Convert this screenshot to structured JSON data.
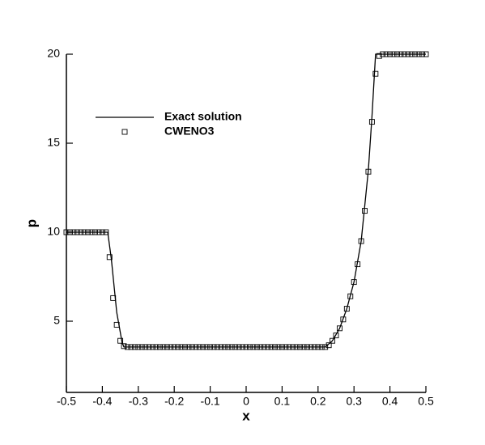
{
  "chart_data": {
    "type": "line",
    "x_label": "x",
    "y_label": "p",
    "xlim": [
      -0.5,
      0.5
    ],
    "xticks": [
      -0.5,
      -0.4,
      -0.3,
      -0.2,
      -0.1,
      0,
      0.1,
      0.2,
      0.3,
      0.4,
      0.5
    ],
    "ylim": [
      1,
      20
    ],
    "yticks": [
      5,
      10,
      15,
      20
    ],
    "legend": "upper left",
    "series": [
      {
        "name": "Exact solution",
        "type": "line",
        "color": "#000000",
        "x": [
          -0.5,
          -0.385,
          -0.375,
          -0.36,
          -0.345,
          -0.34,
          0.22,
          0.24,
          0.26,
          0.28,
          0.3,
          0.32,
          0.34,
          0.35,
          0.36,
          0.5
        ],
        "values": [
          10,
          10,
          8.5,
          5.5,
          3.8,
          3.55,
          3.55,
          3.9,
          4.6,
          5.7,
          7.2,
          9.5,
          13.5,
          16.5,
          20,
          20
        ]
      },
      {
        "name": "CWENO3",
        "type": "scatter",
        "marker": "square",
        "color": "#000000",
        "x": [
          -0.5,
          -0.49,
          -0.48,
          -0.47,
          -0.46,
          -0.45,
          -0.44,
          -0.43,
          -0.42,
          -0.41,
          -0.4,
          -0.39,
          -0.38,
          -0.37,
          -0.36,
          -0.35,
          -0.34,
          -0.33,
          -0.32,
          -0.31,
          -0.3,
          -0.29,
          -0.28,
          -0.27,
          -0.26,
          -0.25,
          -0.24,
          -0.23,
          -0.22,
          -0.21,
          -0.2,
          -0.19,
          -0.18,
          -0.17,
          -0.16,
          -0.15,
          -0.14,
          -0.13,
          -0.12,
          -0.11,
          -0.1,
          -0.09,
          -0.08,
          -0.07,
          -0.06,
          -0.05,
          -0.04,
          -0.03,
          -0.02,
          -0.01,
          0,
          0.01,
          0.02,
          0.03,
          0.04,
          0.05,
          0.06,
          0.07,
          0.08,
          0.09,
          0.1,
          0.11,
          0.12,
          0.13,
          0.14,
          0.15,
          0.16,
          0.17,
          0.18,
          0.19,
          0.2,
          0.21,
          0.22,
          0.23,
          0.24,
          0.25,
          0.26,
          0.27,
          0.28,
          0.29,
          0.3,
          0.31,
          0.32,
          0.33,
          0.34,
          0.35,
          0.36,
          0.37,
          0.38,
          0.39,
          0.4,
          0.41,
          0.42,
          0.43,
          0.44,
          0.45,
          0.46,
          0.47,
          0.48,
          0.49,
          0.5
        ],
        "values": [
          10,
          10,
          10,
          10,
          10,
          10,
          10,
          10,
          10,
          10,
          10,
          10,
          8.6,
          6.3,
          4.8,
          3.9,
          3.6,
          3.55,
          3.55,
          3.55,
          3.55,
          3.55,
          3.55,
          3.55,
          3.55,
          3.55,
          3.55,
          3.55,
          3.55,
          3.55,
          3.55,
          3.55,
          3.55,
          3.55,
          3.55,
          3.55,
          3.55,
          3.55,
          3.55,
          3.55,
          3.55,
          3.55,
          3.55,
          3.55,
          3.55,
          3.55,
          3.55,
          3.55,
          3.55,
          3.55,
          3.55,
          3.55,
          3.55,
          3.55,
          3.55,
          3.55,
          3.55,
          3.55,
          3.55,
          3.55,
          3.55,
          3.55,
          3.55,
          3.55,
          3.55,
          3.55,
          3.55,
          3.55,
          3.55,
          3.55,
          3.55,
          3.55,
          3.55,
          3.65,
          3.9,
          4.2,
          4.6,
          5.1,
          5.7,
          6.4,
          7.2,
          8.2,
          9.5,
          11.2,
          13.4,
          16.2,
          18.9,
          19.9,
          20,
          20,
          20,
          20,
          20,
          20,
          20,
          20,
          20,
          20,
          20,
          20,
          20
        ]
      }
    ]
  }
}
